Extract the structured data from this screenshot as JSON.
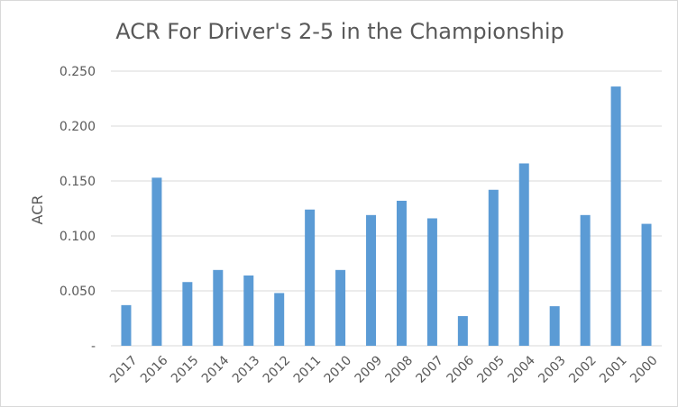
{
  "chart_data": {
    "type": "bar",
    "title": "ACR For Driver's 2-5 in the Championship",
    "xlabel": "",
    "ylabel": "ACR",
    "categories": [
      "2017",
      "2016",
      "2015",
      "2014",
      "2013",
      "2012",
      "2011",
      "2010",
      "2009",
      "2008",
      "2007",
      "2006",
      "2005",
      "2004",
      "2003",
      "2002",
      "2001",
      "2000"
    ],
    "series": [
      {
        "values": [
          0.037,
          0.153,
          0.058,
          0.069,
          0.064,
          0.048,
          0.124,
          0.069,
          0.119,
          0.132,
          0.116,
          0.027,
          0.142,
          0.166,
          0.036,
          0.119,
          0.236,
          0.111
        ]
      }
    ],
    "ylim": [
      0,
      0.25
    ],
    "yticks": [
      {
        "value": 0,
        "label": "-"
      },
      {
        "value": 0.05,
        "label": "0.050"
      },
      {
        "value": 0.1,
        "label": "0.100"
      },
      {
        "value": 0.15,
        "label": "0.150"
      },
      {
        "value": 0.2,
        "label": "0.200"
      },
      {
        "value": 0.25,
        "label": "0.250"
      }
    ],
    "grid": true,
    "legend": "none",
    "bar_color": "#5b9bd5",
    "grid_color": "#d9d9d9",
    "text_color": "#595959"
  }
}
